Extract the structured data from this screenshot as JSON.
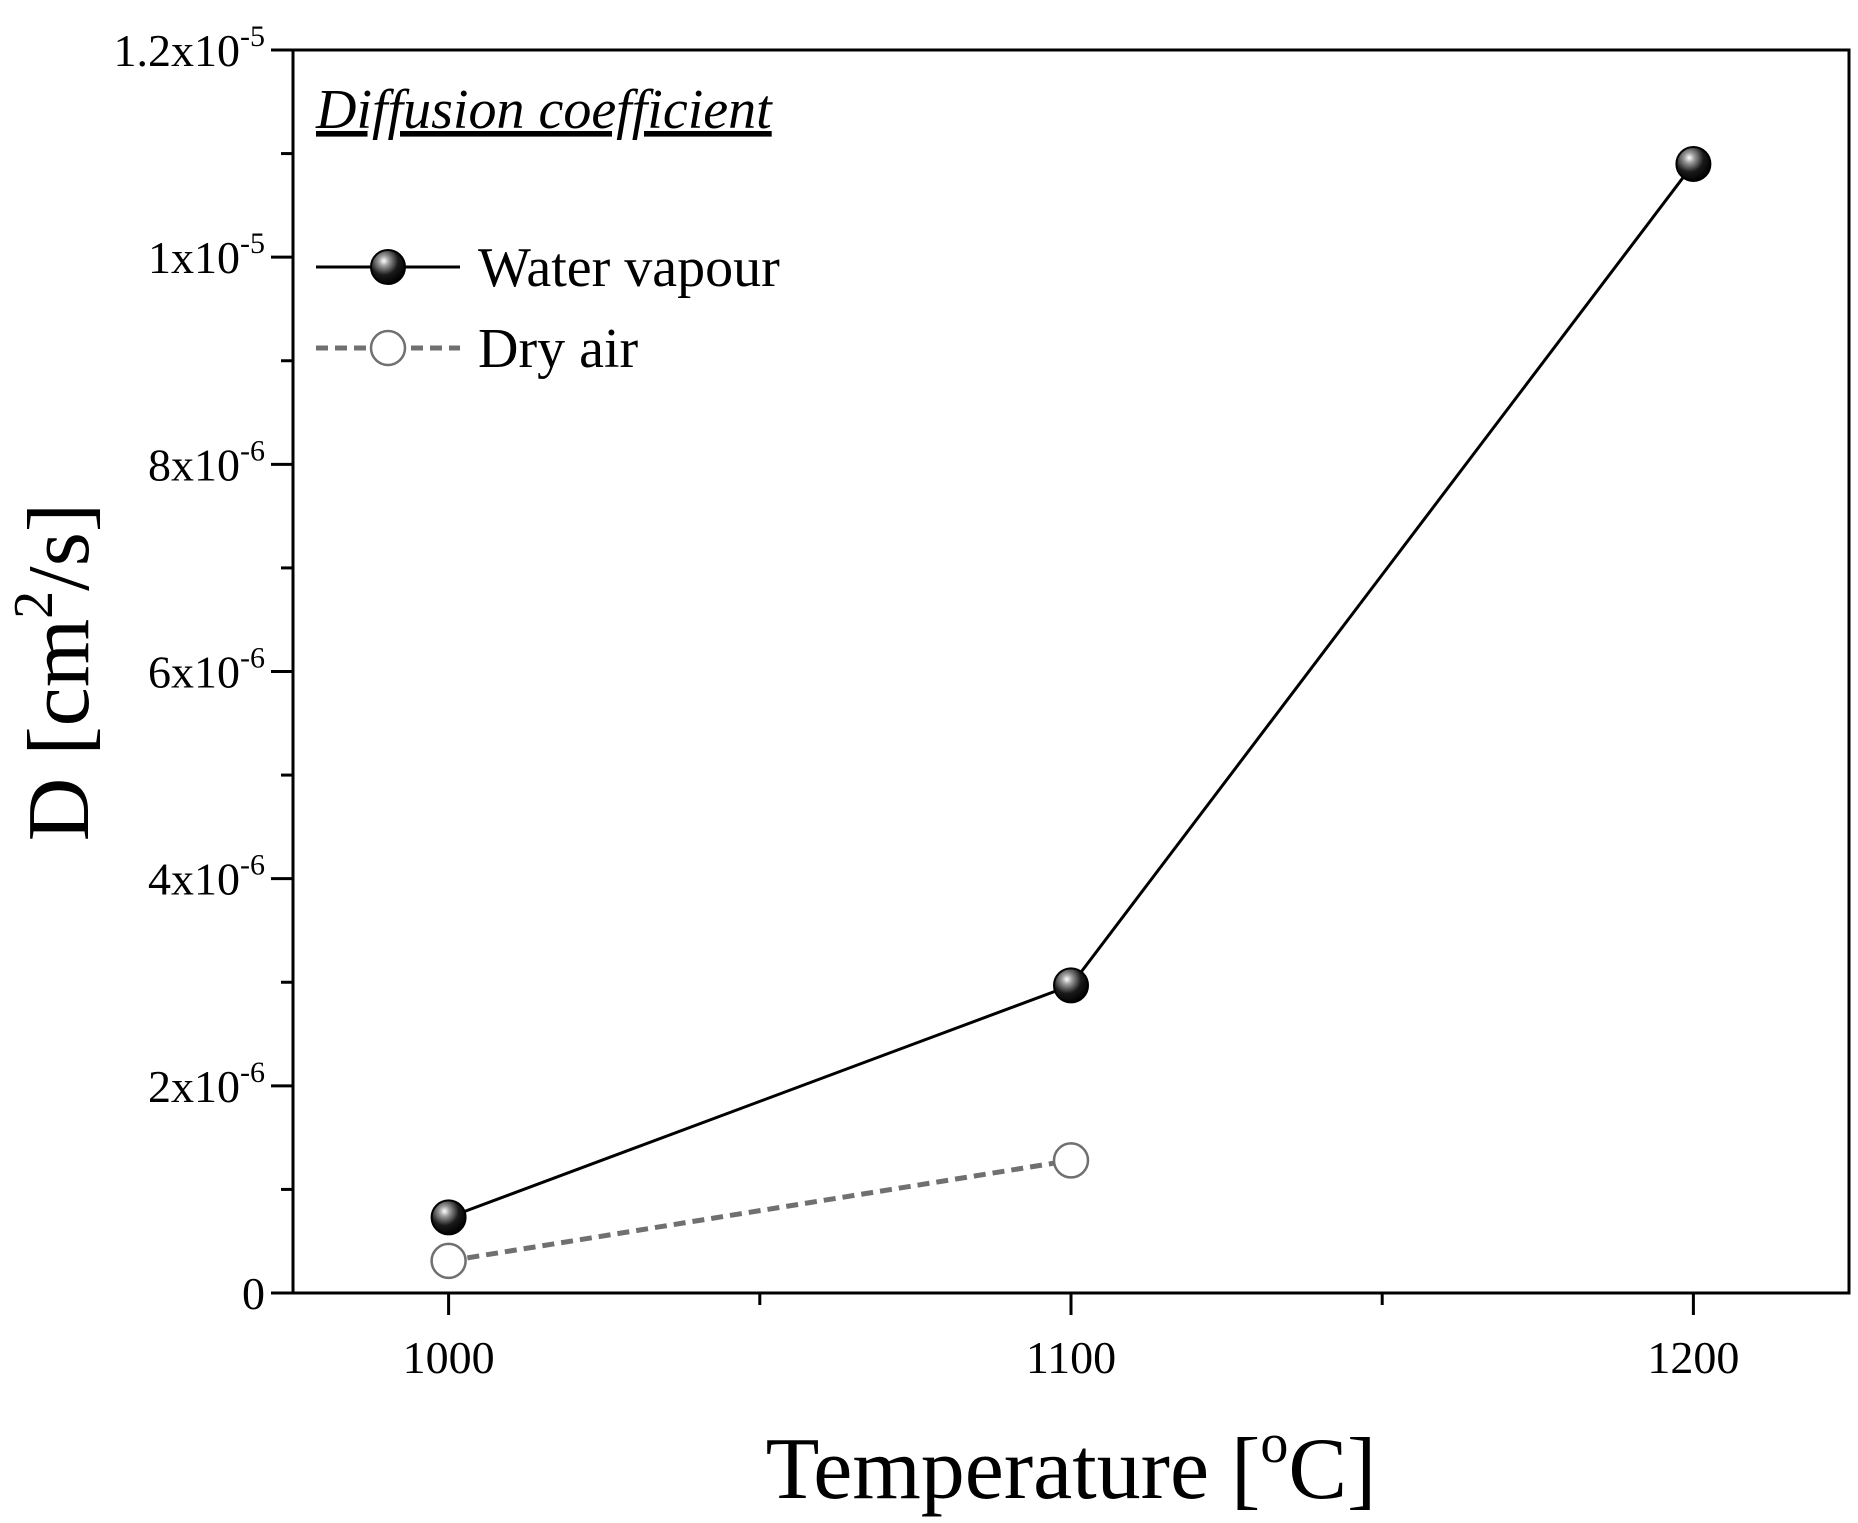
{
  "chart_data": {
    "type": "line",
    "annotation": "Diffusion coefficient",
    "xlabel": "Temperature [",
    "xlabel_sup": "o",
    "xlabel_end": "C]",
    "ylabel": "D [cm",
    "ylabel_sup": "2",
    "ylabel_end": "/s]",
    "xlim": [
      975,
      1225
    ],
    "ylim": [
      0,
      1.2e-05
    ],
    "x_ticks": [
      {
        "value": 1000,
        "label": "1000"
      },
      {
        "value": 1100,
        "label": "1100"
      },
      {
        "value": 1200,
        "label": "1200"
      }
    ],
    "x_minor_ticks": [
      1050,
      1150
    ],
    "y_ticks": [
      {
        "value": 0,
        "mant": "0",
        "exp": ""
      },
      {
        "value": 2e-06,
        "mant": "2x10",
        "exp": "-6"
      },
      {
        "value": 4e-06,
        "mant": "4x10",
        "exp": "-6"
      },
      {
        "value": 6e-06,
        "mant": "6x10",
        "exp": "-6"
      },
      {
        "value": 8e-06,
        "mant": "8x10",
        "exp": "-6"
      },
      {
        "value": 1e-05,
        "mant": "1x10",
        "exp": "-5"
      },
      {
        "value": 1.2e-05,
        "mant": "1.2x10",
        "exp": "-5"
      }
    ],
    "y_minor_ticks": [
      1e-06,
      3e-06,
      5e-06,
      7e-06,
      9e-06,
      1.1e-05
    ],
    "series": [
      {
        "name": "Water vapour",
        "style": "solid",
        "marker": "filled",
        "color": "#000000",
        "x": [
          1000,
          1100,
          1200
        ],
        "y": [
          7.3e-07,
          2.97e-06,
          1.09e-05
        ]
      },
      {
        "name": "Dry air",
        "style": "dashed",
        "marker": "open",
        "color": "#707070",
        "x": [
          1000,
          1100
        ],
        "y": [
          3.1e-07,
          1.28e-06
        ]
      }
    ],
    "legend_position": "top-left",
    "grid": false
  }
}
